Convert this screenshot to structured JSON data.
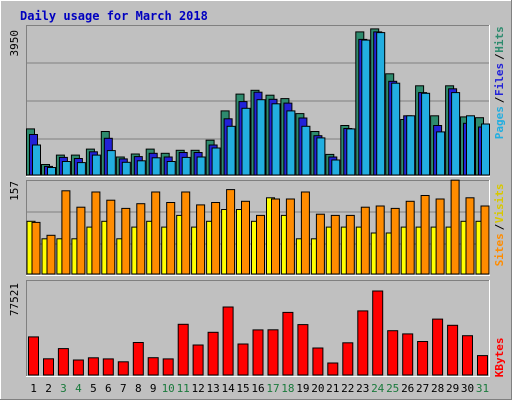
{
  "chart_data": {
    "type": "bar",
    "title": "Daily usage for March 2018",
    "categories": [
      "1",
      "2",
      "3",
      "4",
      "5",
      "6",
      "7",
      "8",
      "9",
      "10",
      "11",
      "12",
      "13",
      "14",
      "15",
      "16",
      "17",
      "18",
      "19",
      "20",
      "21",
      "22",
      "23",
      "24",
      "25",
      "26",
      "27",
      "28",
      "29",
      "30",
      "31"
    ],
    "weekend_days": [
      "3",
      "4",
      "10",
      "11",
      "17",
      "18",
      "24",
      "25",
      "31"
    ],
    "panels": [
      {
        "id": "hits_files_pages",
        "ylabel_max": "3950",
        "ymax": 3950,
        "series": [
          {
            "name": "Hits",
            "color": "#2e8b6e",
            "values": [
              1230,
              280,
              530,
              530,
              690,
              1160,
              480,
              560,
              690,
              580,
              660,
              660,
              930,
              1710,
              2160,
              2260,
              2130,
              2040,
              1640,
              1160,
              550,
              1320,
              3820,
              3900,
              2700,
              1480,
              2380,
              1580,
              2380,
              1550,
              1530
            ]
          },
          {
            "name": "Files",
            "color": "#2222d8",
            "values": [
              1080,
              230,
              470,
              440,
              620,
              980,
              430,
              490,
              580,
              480,
              600,
              600,
              800,
              1500,
              1960,
              2210,
              2020,
              1920,
              1520,
              1050,
              480,
              1240,
              3620,
              3820,
              2500,
              1580,
              2200,
              1320,
              2300,
              1380,
              1280
            ]
          },
          {
            "name": "Pages",
            "color": "#22aee0",
            "values": [
              800,
              200,
              360,
              330,
              530,
              650,
              340,
              380,
              460,
              360,
              470,
              480,
              720,
              1300,
              1780,
              2010,
              1900,
              1710,
              1300,
              990,
              400,
              1230,
              3600,
              3800,
              2450,
              1580,
              2180,
              1150,
              2200,
              1580,
              1360
            ]
          }
        ]
      },
      {
        "id": "visits_sites",
        "ylabel_max": "157",
        "ymax": 157,
        "series": [
          {
            "name": "Visits",
            "color": "#ffff00",
            "values": [
              90,
              60,
              60,
              60,
              80,
              90,
              60,
              80,
              90,
              80,
              100,
              80,
              90,
              110,
              110,
              90,
              130,
              100,
              60,
              60,
              80,
              80,
              80,
              70,
              70,
              80,
              80,
              80,
              80,
              90,
              90
            ]
          },
          {
            "name": "Sites",
            "color": "#ff8c00",
            "values": [
              88,
              66,
              142,
              114,
              140,
              126,
              112,
              120,
              140,
              122,
              140,
              118,
              122,
              144,
              124,
              100,
              128,
              128,
              140,
              102,
              100,
              100,
              114,
              116,
              112,
              124,
              134,
              128,
              160,
              130,
              116
            ]
          }
        ]
      },
      {
        "id": "kbytes",
        "ylabel_max": "77521",
        "ymax": 77521,
        "series": [
          {
            "name": "KBytes",
            "color": "#ff0000",
            "values": [
              31800,
              13500,
              22000,
              12500,
              14300,
              13400,
              11000,
              27100,
              14400,
              13400,
              42300,
              25000,
              35600,
              56700,
              25800,
              37600,
              37700,
              52200,
              42000,
              22500,
              10000,
              26800,
              53400,
              70000,
              36900,
              34300,
              27900,
              46600,
              41400,
              32800,
              16200
            ]
          }
        ]
      }
    ],
    "legend_right": {
      "top": [
        {
          "text": "Pages",
          "color": "#22aee0"
        },
        {
          "text": "/",
          "color": "#000000"
        },
        {
          "text": "Files",
          "color": "#2222d8"
        },
        {
          "text": "/",
          "color": "#000000"
        },
        {
          "text": "Hits",
          "color": "#2e8b6e"
        }
      ],
      "middle": [
        {
          "text": "Sites",
          "color": "#ff8c00"
        },
        {
          "text": "/",
          "color": "#000000"
        },
        {
          "text": "Visits",
          "color": "#d8c800"
        }
      ],
      "bottom": [
        {
          "text": "KBytes",
          "color": "#ff0000"
        }
      ]
    },
    "colors": {
      "background": "#c0c0c0",
      "title": "#0000c0",
      "weekend_label": "#1a7a3c",
      "weekday_label": "#000000"
    }
  }
}
